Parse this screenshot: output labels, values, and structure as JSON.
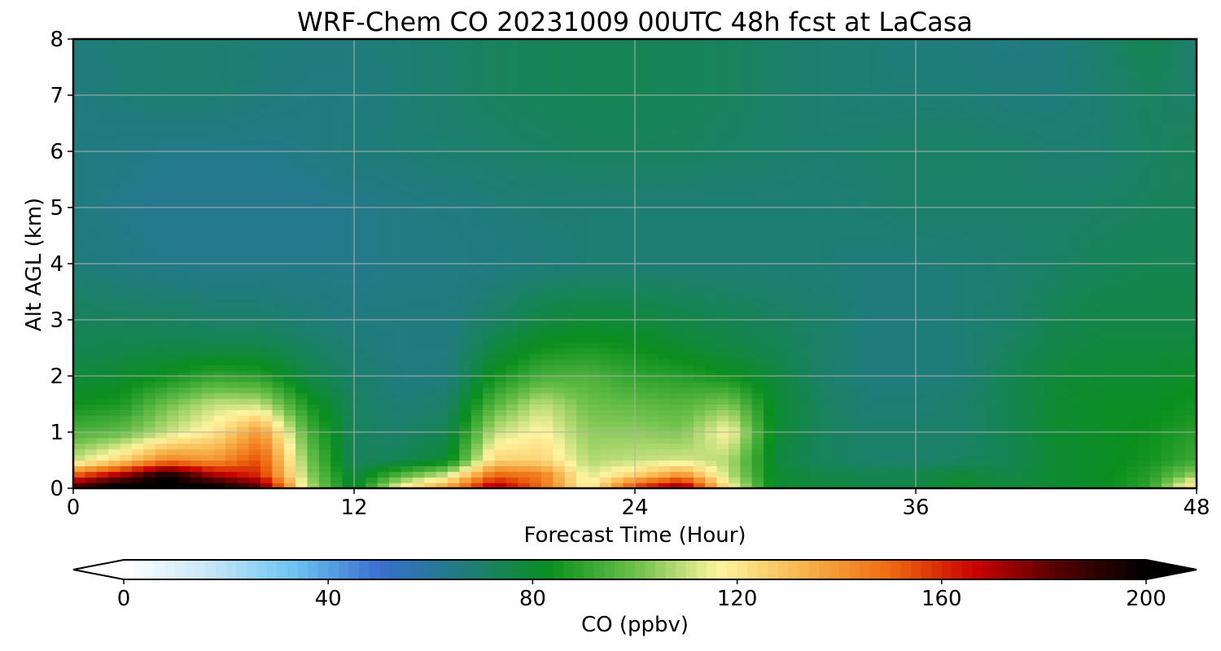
{
  "chart_data": {
    "type": "heatmap",
    "title": "WRF-Chem CO  20231009 00UTC 48h fcst at LaCasa",
    "xlabel": "Forecast Time (Hour)",
    "ylabel": "Alt AGL (km)",
    "xlim": [
      0,
      48
    ],
    "ylim": [
      0,
      8
    ],
    "xticks": [
      0,
      12,
      24,
      36,
      48
    ],
    "yticks": [
      0,
      1,
      2,
      3,
      4,
      5,
      6,
      7,
      8
    ],
    "grid": true,
    "x_hours": [
      0,
      2,
      4,
      6,
      8,
      10,
      12,
      14,
      16,
      18,
      20,
      22,
      24,
      26,
      28,
      30,
      32,
      34,
      36,
      38,
      40,
      42,
      44,
      46,
      48
    ],
    "y_km": [
      0,
      0.25,
      0.5,
      1,
      1.5,
      2,
      2.5,
      3,
      4,
      5,
      6,
      7,
      8
    ],
    "values": [
      [
        190,
        210,
        210,
        205,
        185,
        110,
        78,
        120,
        140,
        175,
        150,
        115,
        160,
        180,
        120,
        80,
        78,
        76,
        76,
        82,
        78,
        80,
        82,
        90,
        130
      ],
      [
        150,
        170,
        195,
        170,
        160,
        105,
        76,
        95,
        110,
        150,
        145,
        112,
        125,
        140,
        110,
        80,
        76,
        74,
        75,
        78,
        76,
        80,
        82,
        88,
        105
      ],
      [
        110,
        125,
        145,
        140,
        155,
        102,
        72,
        74,
        80,
        125,
        125,
        108,
        110,
        112,
        108,
        78,
        72,
        70,
        70,
        72,
        74,
        80,
        82,
        85,
        92
      ],
      [
        95,
        98,
        110,
        120,
        140,
        95,
        72,
        70,
        74,
        110,
        118,
        104,
        104,
        102,
        118,
        80,
        72,
        70,
        70,
        70,
        74,
        80,
        82,
        84,
        88
      ],
      [
        84,
        86,
        100,
        110,
        110,
        86,
        72,
        68,
        70,
        96,
        110,
        100,
        98,
        96,
        102,
        80,
        72,
        68,
        68,
        70,
        74,
        80,
        82,
        82,
        85
      ],
      [
        78,
        80,
        84,
        90,
        88,
        76,
        70,
        66,
        67,
        84,
        94,
        95,
        90,
        88,
        84,
        78,
        70,
        67,
        67,
        68,
        74,
        78,
        80,
        80,
        82
      ],
      [
        74,
        75,
        76,
        76,
        76,
        72,
        68,
        66,
        66,
        77,
        84,
        86,
        84,
        80,
        77,
        74,
        70,
        67,
        67,
        68,
        72,
        76,
        78,
        78,
        78
      ],
      [
        73,
        72,
        72,
        70,
        70,
        68,
        66,
        66,
        66,
        71,
        77,
        79,
        78,
        76,
        74,
        72,
        70,
        67,
        67,
        68,
        70,
        74,
        76,
        76,
        76
      ],
      [
        67,
        66,
        64,
        64,
        64,
        64,
        64,
        65,
        65,
        66,
        67,
        68,
        68,
        68,
        68,
        68,
        68,
        67,
        67,
        68,
        69,
        71,
        73,
        74,
        74
      ],
      [
        66,
        64,
        63,
        63,
        63,
        63,
        64,
        65,
        66,
        67,
        68,
        68,
        68,
        68,
        68,
        68,
        68,
        69,
        70,
        70,
        70,
        70,
        71,
        72,
        73
      ],
      [
        66,
        65,
        64,
        64,
        64,
        65,
        67,
        68,
        69,
        70,
        71,
        72,
        72,
        72,
        71,
        70,
        69,
        70,
        71,
        71,
        70,
        69,
        69,
        71,
        73
      ],
      [
        66,
        68,
        69,
        69,
        67,
        66,
        66,
        68,
        70,
        72,
        73,
        74,
        74,
        73,
        72,
        70,
        69,
        68,
        68,
        68,
        67,
        67,
        69,
        72,
        70
      ],
      [
        67,
        68,
        69,
        69,
        68,
        67,
        67,
        68,
        70,
        72,
        73,
        74,
        74,
        73,
        72,
        70,
        69,
        68,
        67,
        67,
        66,
        67,
        70,
        75,
        68
      ]
    ],
    "colorbar": {
      "label": "CO  (ppbv)",
      "ticks": [
        0,
        40,
        80,
        120,
        160,
        200
      ],
      "range": [
        0,
        200
      ],
      "extend": "both"
    }
  },
  "colors": {
    "colormap": [
      "#ffffff",
      "#c8e6f8",
      "#6ec3f2",
      "#3a6fd0",
      "#1f7c7c",
      "#0a8f1e",
      "#6cc04a",
      "#fff4a0",
      "#f7b24a",
      "#ee6a10",
      "#c80000",
      "#500000",
      "#000000"
    ],
    "grid": "#b0b0b0",
    "axes": "#000000"
  }
}
